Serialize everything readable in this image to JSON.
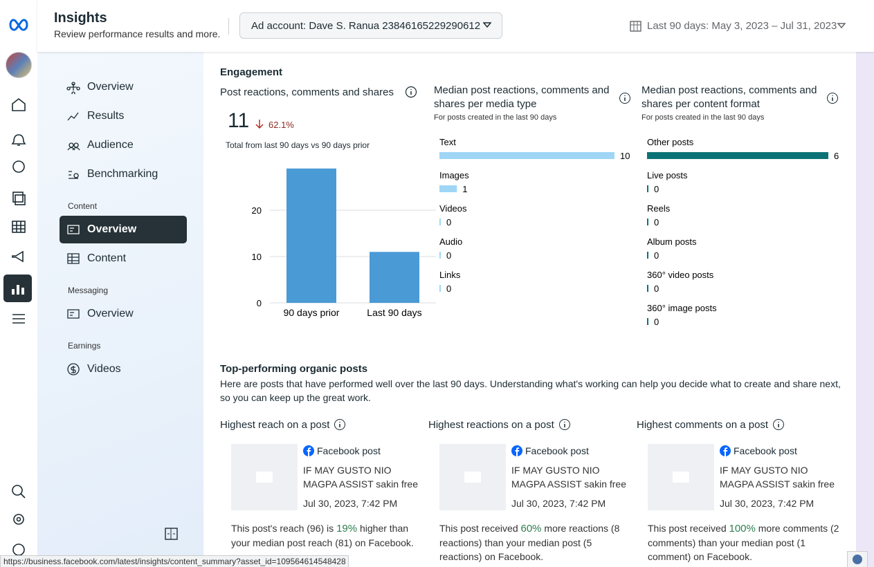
{
  "header": {
    "title": "Insights",
    "subtitle": "Review performance results and more.",
    "ad_account": "Ad account: Dave S. Ranua 23846165229290612",
    "date_range": "Last 90 days: May 3, 2023 – Jul 31, 2023"
  },
  "nav": {
    "items": [
      "Overview",
      "Results",
      "Audience",
      "Benchmarking"
    ],
    "sections": [
      {
        "title": "Content",
        "items": [
          "Overview",
          "Content"
        ]
      },
      {
        "title": "Messaging",
        "items": [
          "Overview"
        ]
      },
      {
        "title": "Earnings",
        "items": [
          "Videos"
        ]
      }
    ]
  },
  "engagement": {
    "title": "Engagement",
    "summary": {
      "title": "Post reactions, comments and shares",
      "total": 11,
      "change": "62.1%",
      "note": "Total from last 90 days vs 90 days prior"
    }
  },
  "chart_data": [
    {
      "type": "bar",
      "categories": [
        "90 days prior",
        "Last 90 days"
      ],
      "values": [
        29,
        11
      ],
      "ylim": [
        0,
        30
      ],
      "yticks": [
        0,
        10,
        20
      ],
      "grid": true,
      "color": "#4a9ad6"
    },
    {
      "type": "hbar",
      "title": "Median post reactions, comments and shares per media type",
      "subtitle": "For posts created in the last 90 days",
      "categories": [
        "Text",
        "Images",
        "Videos",
        "Audio",
        "Links"
      ],
      "values": [
        10,
        1,
        0,
        0,
        0
      ],
      "color": "#9fd6f5"
    },
    {
      "type": "hbar",
      "title": "Median post reactions, comments and shares per content format",
      "subtitle": "For posts created in the last 90 days",
      "categories": [
        "Other posts",
        "Live posts",
        "Reels",
        "Album posts",
        "360° video posts",
        "360° image posts"
      ],
      "values": [
        6,
        0,
        0,
        0,
        0,
        0
      ],
      "color": "#0b7375"
    }
  ],
  "top_posts": {
    "title": "Top-performing organic posts",
    "description": "Here are posts that have performed well over the last 90 days. Understanding what's working can help you decide what to create and share next, so you can keep up the great work.",
    "cards": [
      {
        "heading": "Highest reach on a post",
        "post_type": "Facebook post",
        "text": "IF MAY GUSTO NIO MAGPA ASSIST sakin free to Chat...",
        "date": "Jul 30, 2023, 7:42 PM",
        "summary": {
          "before": "This post's reach (96) is ",
          "highlight": "19%",
          "after": " higher than your median post reach (81) on Facebook."
        }
      },
      {
        "heading": "Highest reactions on a post",
        "post_type": "Facebook post",
        "text": "IF MAY GUSTO NIO MAGPA ASSIST sakin free to Chat...",
        "date": "Jul 30, 2023, 7:42 PM",
        "summary": {
          "before": "This post received ",
          "highlight": "60%",
          "after": " more reactions (8 reactions) than your median post (5 reactions) on Facebook."
        }
      },
      {
        "heading": "Highest comments on a post",
        "post_type": "Facebook post",
        "text": "IF MAY GUSTO NIO MAGPA ASSIST sakin free to Chat...",
        "date": "Jul 30, 2023, 7:42 PM",
        "summary": {
          "before": "This post received ",
          "highlight": "100%",
          "after": " more comments (2 comments) than your median post (1 comment) on Facebook."
        }
      }
    ]
  },
  "status_url": "https://business.facebook.com/latest/insights/content_summary?asset_id=109564614548428"
}
